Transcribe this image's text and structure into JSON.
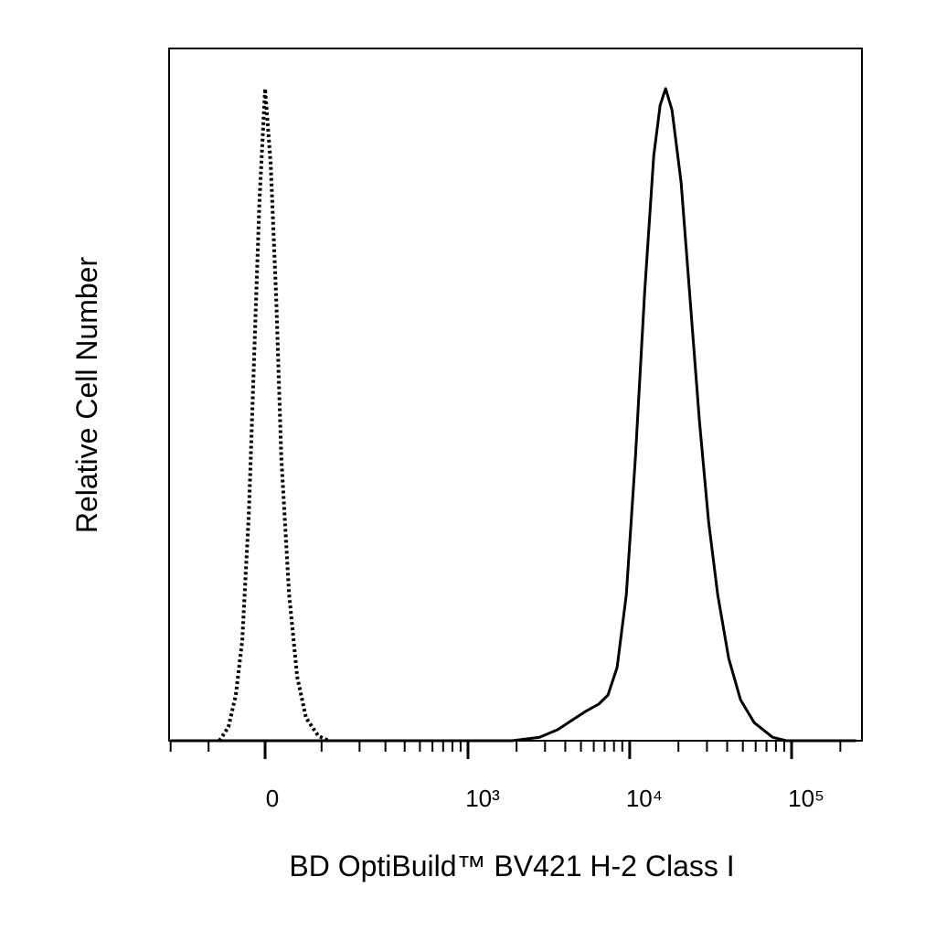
{
  "chart_data": {
    "type": "line",
    "xlabel": "BD OptiBuild™ BV421 H-2 Class I",
    "ylabel": "Relative Cell Number",
    "xscale": "biexponential",
    "xlim": [
      -205,
      272000
    ],
    "ylim": [
      0,
      100
    ],
    "xticks": [
      0,
      {
        "value": 1000,
        "label": "10³"
      },
      {
        "value": 10000,
        "label": "10⁴"
      },
      {
        "value": 100000,
        "label": "10⁵"
      }
    ],
    "xminorticks": [
      -200,
      -100,
      100,
      200,
      300,
      400,
      500,
      600,
      700,
      800,
      900,
      2000,
      3000,
      4000,
      5000,
      6000,
      7000,
      8000,
      9000,
      20000,
      30000,
      40000,
      50000,
      60000,
      70000,
      80000,
      90000,
      200000
    ],
    "series": [
      {
        "color": "#000000",
        "dash": "dotted",
        "x": [
          -78,
          -61,
          -48,
          -37,
          -26,
          -18,
          -9,
          0,
          9,
          18,
          26,
          39,
          53,
          69,
          93,
          116
        ],
        "values": [
          0,
          2.0,
          6.6,
          14.5,
          33.0,
          54.2,
          77.9,
          94.2,
          83.2,
          63.4,
          41.0,
          21.1,
          9.2,
          3.3,
          0.7,
          0
        ]
      },
      {
        "color": "#000000",
        "dash": "solid",
        "x": [
          -200,
          1873,
          2770,
          3592,
          4365,
          5305,
          6448,
          7343,
          8362,
          9531,
          10853,
          12365,
          14078,
          15422,
          16677,
          18256,
          20787,
          23677,
          26958,
          30699,
          34966,
          40880,
          48406,
          58822,
          76294,
          92725,
          250000
        ],
        "values": [
          0,
          0,
          0.5,
          1.6,
          2.9,
          4.2,
          5.3,
          6.6,
          10.6,
          21.1,
          41.0,
          64.7,
          84.5,
          91.8,
          94.2,
          91.1,
          80.6,
          63.4,
          46.2,
          31.7,
          21.1,
          11.9,
          5.9,
          2.6,
          0.5,
          0,
          0
        ]
      }
    ]
  }
}
